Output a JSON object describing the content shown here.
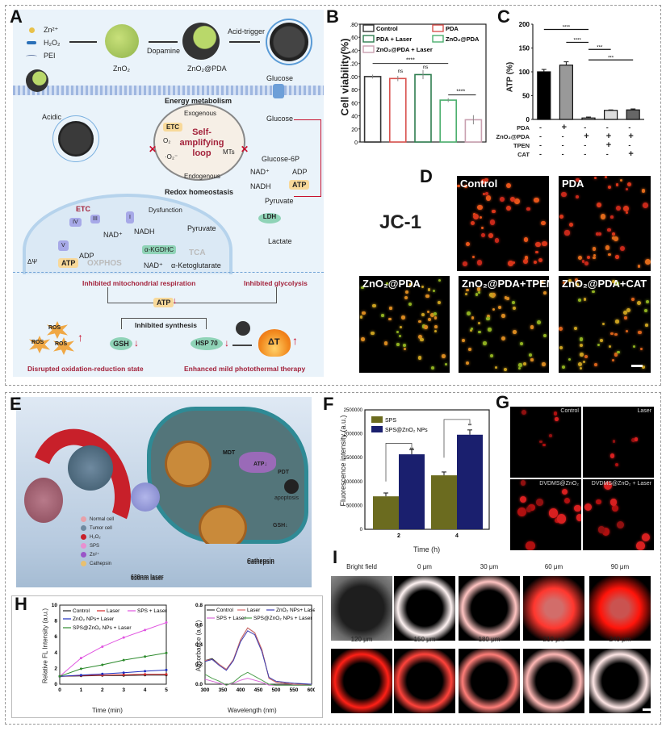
{
  "panels": {
    "A": {
      "label": "A",
      "legend": [
        "Zn²⁺",
        "H₂O₂",
        "PEI"
      ],
      "synthesis": {
        "step1": "ZnO₂",
        "dopamine": "Dopamine",
        "step2": "ZnO₂@PDA",
        "acid_trigger": "Acid-trigger"
      },
      "acidic": "Acidic",
      "energy_metabolism": "Energy metabolism",
      "exogenous": "Exogenous",
      "endogenous": "Endogenous",
      "loop": "Self-amplifying loop",
      "etc": "ETC",
      "o2": "O₂",
      "e": "e⁻",
      "o2_radical": "·O₂⁻",
      "mts": "MTs",
      "redox": "Redox homeostasis",
      "glycolysis": {
        "glucose_top": "Glucose",
        "glucose": "Glucose",
        "g6p": "Glucose-6P",
        "nad": "NAD⁺",
        "nadh": "NADH",
        "adp": "ADP",
        "atp": "ATP",
        "pyruvate": "Pyruvate",
        "ldh": "LDH",
        "lactate": "Lactate"
      },
      "mito": {
        "etc": "ETC",
        "dysfunction": "Dysfunction",
        "complexes": [
          "I",
          "II",
          "III",
          "IV",
          "V"
        ],
        "e": "e⁻",
        "h": "H⁺",
        "nad": "NAD⁺",
        "nadh": "NADH",
        "pyruvate": "Pyruvate",
        "akgdhc": "α-KGDHC",
        "tca": "TCA",
        "adp": "ADP",
        "atp": "ATP",
        "oxphos": "OXPHOS",
        "nad2": "NAD⁺",
        "akg": "α-Ketoglutarate",
        "dpsi": "ΔΨ"
      },
      "bottom": {
        "mito_resp": "Inhibited mitochondrial respiration",
        "glyco": "Inhibited glycolysis",
        "atp": "ATP",
        "synth": "Inhibited synthesis",
        "ros": "ROS",
        "gsh": "GSH",
        "hsp": "HSP 70",
        "dt": "ΔT",
        "disrupted": "Disrupted oxidation-reduction state",
        "enhanced": "Enhanced mild photothermal therapy"
      }
    },
    "B": {
      "label": "B"
    },
    "C": {
      "label": "C"
    },
    "D": {
      "label": "D",
      "stain": "JC-1",
      "images": [
        "Control",
        "PDA",
        "ZnO₂@PDA",
        "ZnO₂@PDA+TPEN",
        "ZnO₂@PDA+CAT"
      ]
    },
    "E": {
      "label": "E",
      "legend": [
        "Normal cell",
        "Tumor cell",
        "H₂O₂",
        "SPS",
        "Zn²⁺",
        "Cathepsin"
      ],
      "labels": {
        "mdt": "MDT",
        "pdt": "PDT",
        "atp": "ATP↓",
        "apoptosis": "apoptosis",
        "gsh": "GSH↓",
        "cathepsin": "Cathepsin",
        "laser": "630nm laser",
        "h": "H⁺"
      }
    },
    "F": {
      "label": "F"
    },
    "G": {
      "label": "G",
      "images": [
        "Control",
        "Laser",
        "DVDMS@ZnO₂",
        "DVDMS@ZnO₂ + Laser"
      ]
    },
    "H": {
      "label": "H"
    },
    "I": {
      "label": "I",
      "row1": [
        "Bright field",
        "0 μm",
        "30 μm",
        "60 μm",
        "90 μm"
      ],
      "row2": [
        "120 μm",
        "150 μm",
        "180 μm",
        "210 μm",
        "240 μm"
      ]
    }
  },
  "chart_data": [
    {
      "id": "B",
      "type": "bar",
      "title": "",
      "xlabel": "",
      "ylabel": "Cell viability(%)",
      "ylim": [
        0,
        180
      ],
      "yticks": [
        0,
        20,
        40,
        60,
        80,
        100,
        120,
        140,
        160,
        180
      ],
      "categories": [
        "Control",
        "PDA",
        "PDA + Laser",
        "ZnO₂@PDA",
        "ZnO₂@PDA + Laser"
      ],
      "values": [
        100,
        97,
        103,
        64,
        34
      ],
      "errors": [
        3,
        4,
        7,
        3,
        7
      ],
      "colors": [
        "#333333",
        "#d9534f",
        "#2e7d4f",
        "#4caf6e",
        "#c9a0b0"
      ],
      "legend": [
        "Control",
        "PDA",
        "PDA + Laser",
        "ZnO₂@PDA",
        "ZnO₂@PDA + Laser"
      ],
      "annotations": [
        "****",
        "ns",
        "ns",
        "****"
      ]
    },
    {
      "id": "C",
      "type": "bar",
      "ylabel": "ATP (%)",
      "ylim": [
        0,
        200
      ],
      "yticks": [
        0,
        50,
        100,
        150,
        200
      ],
      "categories": [
        "1",
        "2",
        "3",
        "4",
        "5"
      ],
      "values": [
        100,
        114,
        3,
        19,
        20
      ],
      "errors": [
        5,
        7,
        2,
        1,
        2
      ],
      "colors": [
        "#000000",
        "#999999",
        "#ffffff",
        "#dddddd",
        "#666666"
      ],
      "conditions": {
        "PDA": [
          "-",
          "+",
          "-",
          "-",
          "-"
        ],
        "ZnO₂@PDA": [
          "-",
          "-",
          "+",
          "+",
          "+"
        ],
        "TPEN": [
          "-",
          "-",
          "-",
          "+",
          "-"
        ],
        "CAT": [
          "-",
          "-",
          "-",
          "-",
          "+"
        ]
      },
      "annotations": [
        "****",
        "****",
        "***",
        "***"
      ]
    },
    {
      "id": "F",
      "type": "bar",
      "xlabel": "Time (h)",
      "ylabel": "Fluorescence intensity (a.u.)",
      "ylim": [
        0,
        2500000
      ],
      "yticks": [
        0,
        500000,
        1000000,
        1500000,
        2000000,
        2500000
      ],
      "categories": [
        "2",
        "4"
      ],
      "series": [
        {
          "name": "SPS",
          "values": [
            690000,
            1130000
          ],
          "color": "#6b6b1f"
        },
        {
          "name": "SPS@ZnO₂ NPs",
          "values": [
            1570000,
            1980000
          ],
          "color": "#1a1f6e"
        }
      ],
      "annotations": [
        "**",
        "**"
      ]
    },
    {
      "id": "H-left",
      "type": "line",
      "xlabel": "Time (min)",
      "ylabel": "Relative FL Intensity (a.u.)",
      "xlim": [
        0,
        5
      ],
      "ylim": [
        0,
        10
      ],
      "xticks": [
        0,
        1,
        2,
        3,
        4,
        5
      ],
      "yticks": [
        0,
        2,
        4,
        6,
        8,
        10
      ],
      "x": [
        0,
        1,
        2,
        3,
        4,
        5
      ],
      "series": [
        {
          "name": "Control",
          "values": [
            1.0,
            1.05,
            1.1,
            1.1,
            1.15,
            1.15
          ],
          "color": "#222222"
        },
        {
          "name": "Laser",
          "values": [
            1.0,
            1.1,
            1.15,
            1.2,
            1.25,
            1.25
          ],
          "color": "#d62728"
        },
        {
          "name": "SPS + Laser",
          "values": [
            1.0,
            3.3,
            4.75,
            5.9,
            6.85,
            7.8
          ],
          "color": "#e055e0"
        },
        {
          "name": "ZnO₂ NPs+ Laser",
          "values": [
            1.0,
            1.15,
            1.3,
            1.45,
            1.65,
            1.8
          ],
          "color": "#1f2fbf"
        },
        {
          "name": "SPS@ZnO₂ NPs + Laser",
          "values": [
            1.0,
            1.95,
            2.45,
            3.05,
            3.5,
            3.95
          ],
          "color": "#2e8b2e"
        }
      ]
    },
    {
      "id": "H-right",
      "type": "line",
      "xlabel": "Wavelength (nm)",
      "ylabel": "Absorbance (a.u.)",
      "xlim": [
        300,
        600
      ],
      "ylim": [
        0,
        0.8
      ],
      "xticks": [
        300,
        350,
        400,
        450,
        500,
        550,
        600
      ],
      "yticks": [
        0.0,
        0.2,
        0.4,
        0.6,
        0.8
      ],
      "x": [
        300,
        320,
        340,
        360,
        380,
        400,
        420,
        440,
        460,
        480,
        500,
        550,
        600
      ],
      "series": [
        {
          "name": "Control",
          "values": [
            0.24,
            0.26,
            0.2,
            0.15,
            0.25,
            0.45,
            0.57,
            0.52,
            0.35,
            0.06,
            0.02,
            0.0,
            -0.01
          ],
          "color": "#333333"
        },
        {
          "name": "Laser",
          "values": [
            0.24,
            0.25,
            0.2,
            0.15,
            0.25,
            0.45,
            0.57,
            0.52,
            0.35,
            0.06,
            0.02,
            0.0,
            -0.01
          ],
          "color": "#d96b6b"
        },
        {
          "name": "ZnO₂ NPs+ Laser",
          "values": [
            0.23,
            0.25,
            0.19,
            0.14,
            0.24,
            0.43,
            0.54,
            0.5,
            0.33,
            0.07,
            0.03,
            0.01,
            0.0
          ],
          "color": "#3f3fb0"
        },
        {
          "name": "SPS + Laser",
          "values": [
            0.05,
            0.03,
            0.01,
            -0.01,
            0.01,
            0.04,
            0.06,
            0.04,
            0.02,
            -0.01,
            -0.01,
            -0.01,
            -0.01
          ],
          "color": "#d86bd8"
        },
        {
          "name": "SPS@ZnO₂ NPs + Laser",
          "values": [
            0.1,
            0.06,
            0.03,
            -0.01,
            0.02,
            0.08,
            0.12,
            0.08,
            0.04,
            0.0,
            -0.01,
            -0.01,
            -0.01
          ],
          "color": "#4f9f4f"
        }
      ]
    }
  ]
}
